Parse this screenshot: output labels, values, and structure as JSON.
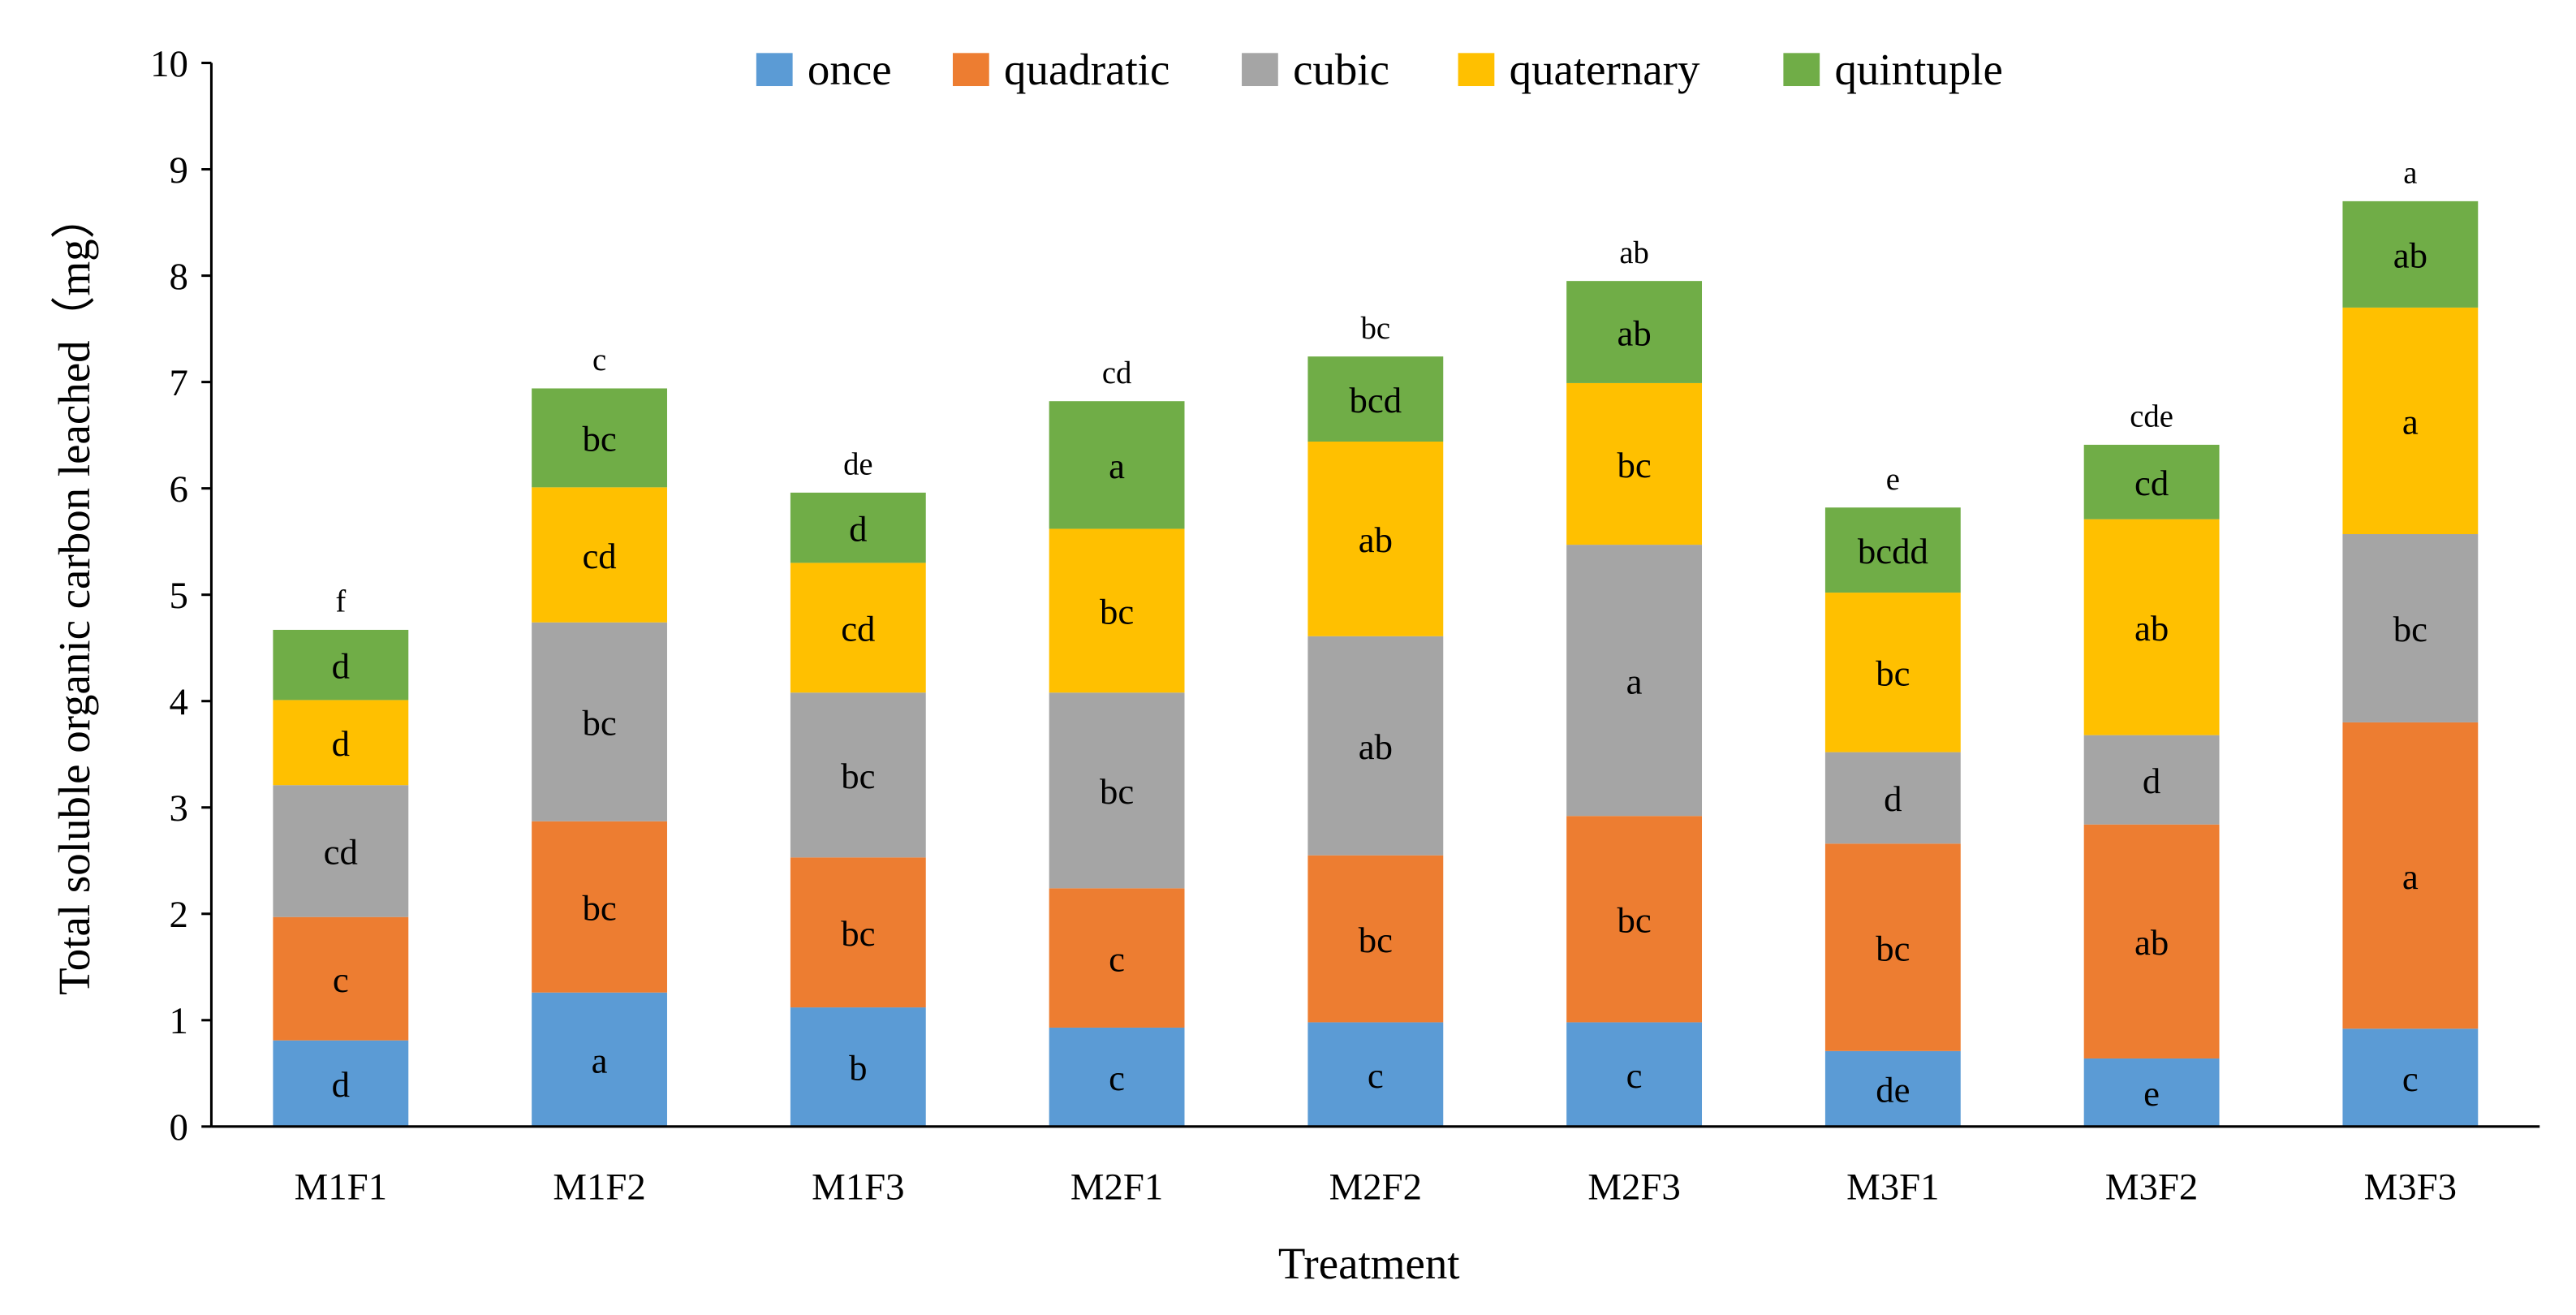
{
  "chart_data": {
    "type": "bar",
    "stacked": true,
    "title": "",
    "xlabel": "Treatment",
    "ylabel": "Total soluble organic carbon leached（mg）",
    "ylim": [
      0,
      10
    ],
    "yticks": [
      "0",
      "1",
      "2",
      "3",
      "4",
      "5",
      "6",
      "7",
      "8",
      "9",
      "10"
    ],
    "grid": false,
    "legend_position": "top-center",
    "categories": [
      "M1F1",
      "M1F2",
      "M1F3",
      "M2F1",
      "M2F2",
      "M2F3",
      "M3F1",
      "M3F2",
      "M3F3"
    ],
    "series": [
      {
        "name": "once",
        "color": "#5B9BD5",
        "values": [
          0.81,
          1.26,
          1.12,
          0.93,
          0.98,
          0.98,
          0.71,
          0.64,
          0.92
        ],
        "labels": [
          "d",
          "a",
          "b",
          "c",
          "c",
          "c",
          "de",
          "e",
          "c"
        ]
      },
      {
        "name": "quadratic",
        "color": "#ED7D31",
        "values": [
          1.16,
          1.61,
          1.41,
          1.31,
          1.57,
          1.94,
          1.95,
          2.2,
          2.88
        ],
        "labels": [
          "c",
          "bc",
          "bc",
          "c",
          "bc",
          "bc",
          "bc",
          "ab",
          "a"
        ]
      },
      {
        "name": "cubic",
        "color": "#A5A5A5",
        "values": [
          1.24,
          1.87,
          1.55,
          1.84,
          2.06,
          2.55,
          0.86,
          0.84,
          1.77
        ],
        "labels": [
          "cd",
          "bc",
          "bc",
          "bc",
          "ab",
          "a",
          "d",
          "d",
          "bc"
        ]
      },
      {
        "name": "quaternary",
        "color": "#FFC000",
        "values": [
          0.8,
          1.27,
          1.22,
          1.54,
          1.83,
          1.52,
          1.5,
          2.03,
          2.13
        ],
        "labels": [
          "d",
          "cd",
          "cd",
          "bc",
          "ab",
          "bc",
          "bc",
          "ab",
          "a"
        ]
      },
      {
        "name": "quintuple",
        "color": "#70AD47",
        "values": [
          0.66,
          0.93,
          0.66,
          1.2,
          0.8,
          0.96,
          0.8,
          0.7,
          1.0
        ],
        "labels": [
          "d",
          "bc",
          "d",
          "a",
          "bcd",
          "ab",
          "bcdd",
          "cd",
          "ab"
        ]
      }
    ],
    "total_labels": [
      "f",
      "c",
      "de",
      "cd",
      "bc",
      "ab",
      "e",
      "cde",
      "a"
    ]
  }
}
